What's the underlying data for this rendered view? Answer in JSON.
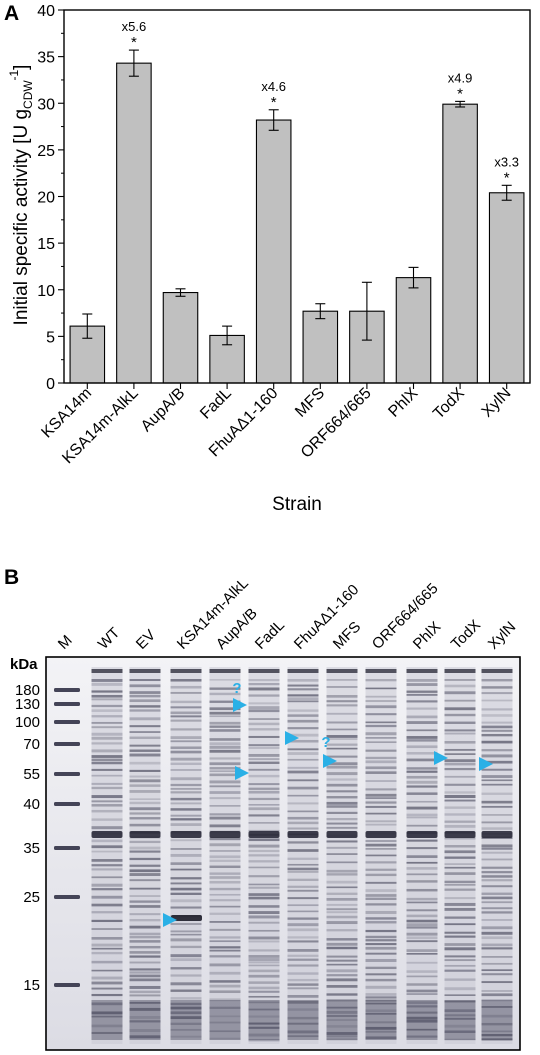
{
  "panel_a": {
    "label": "A",
    "chart_data": {
      "type": "bar",
      "categories": [
        "KSA14m",
        "KSA14m-AlkL",
        "AupA/B",
        "FadL",
        "FhuAΔ1-160",
        "MFS",
        "ORF664/665",
        "PhlX",
        "TodX",
        "XylN"
      ],
      "values": [
        6.1,
        34.3,
        9.7,
        5.1,
        28.2,
        7.7,
        7.7,
        11.3,
        29.9,
        20.4
      ],
      "errors": [
        1.3,
        1.4,
        0.4,
        1.0,
        1.1,
        0.8,
        3.1,
        1.1,
        0.3,
        0.8
      ],
      "fold_labels": [
        "",
        "x5.6",
        "",
        "",
        "x4.6",
        "",
        "",
        "",
        "x4.9",
        "x3.3"
      ],
      "significance": [
        "",
        "*",
        "",
        "",
        "*",
        "",
        "",
        "",
        "*",
        "*"
      ],
      "ylim": [
        0,
        40
      ],
      "yticks": [
        "0",
        "5",
        "10",
        "15",
        "20",
        "25",
        "30",
        "35",
        "40"
      ],
      "ylabel_main": "Initial specific activity [U g",
      "ylabel_sub": "CDW",
      "ylabel_sup": "-1",
      "ylabel_close": "]",
      "xlabel": "Strain",
      "bar_color": "#c0c0c0"
    }
  },
  "panel_b": {
    "label": "B",
    "lane_labels": [
      "M",
      "WT",
      "EV",
      "KSA14m-AlkL",
      "AupA/B",
      "FadL",
      "FhuAΔ1-160",
      "MFS",
      "ORF664/665",
      "PhlX",
      "TodX",
      "XylN"
    ],
    "kda_header": "kDa",
    "marker_sizes": [
      "180",
      "130",
      "100",
      "70",
      "55",
      "40",
      "35",
      "25",
      "15"
    ],
    "question_marks": [
      "?",
      "?"
    ],
    "arrow_color": "#2ab0e6"
  }
}
